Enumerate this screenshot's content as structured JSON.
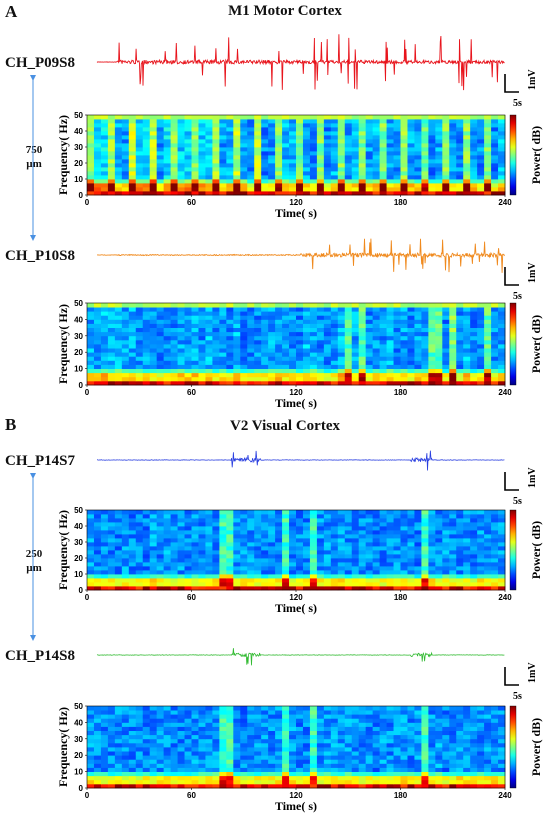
{
  "panels": [
    {
      "letter": "A",
      "title": "M1 Motor Cortex",
      "distance": [
        "750",
        "µm"
      ]
    },
    {
      "letter": "B",
      "title": "V2 Visual Cortex",
      "distance": [
        "250",
        "µm"
      ]
    }
  ],
  "channels": [
    {
      "name": "CH_P09S8",
      "color": "#e8141c"
    },
    {
      "name": "CH_P10S8",
      "color": "#f08a1e"
    },
    {
      "name": "CH_P14S7",
      "color": "#2a3fe0"
    },
    {
      "name": "CH_P14S8",
      "color": "#33bb33"
    }
  ],
  "scale_bar": {
    "voltage": "1mV",
    "time": "5s"
  },
  "chart_data": [
    {
      "type": "heatmap",
      "channel": "CH_P09S8",
      "xlabel": "Time( s)",
      "ylabel": "Frequency( Hz)",
      "colorbar_label": "Power( dB)",
      "x_ticks": [
        "0",
        "60",
        "120",
        "180",
        "240"
      ],
      "y_ticks": [
        "0",
        "10",
        "20",
        "30",
        "40",
        "50"
      ],
      "xlim": [
        0,
        240
      ],
      "ylim": [
        0,
        50
      ],
      "colormap": "jet"
    },
    {
      "type": "heatmap",
      "channel": "CH_P10S8",
      "xlabel": "Time( s)",
      "ylabel": "Frequency( Hz)",
      "colorbar_label": "Power( dB)",
      "x_ticks": [
        "0",
        "60",
        "120",
        "180",
        "240"
      ],
      "y_ticks": [
        "0",
        "10",
        "20",
        "30",
        "40",
        "50"
      ],
      "xlim": [
        0,
        240
      ],
      "ylim": [
        0,
        50
      ],
      "colormap": "jet"
    },
    {
      "type": "heatmap",
      "channel": "CH_P14S7",
      "xlabel": "Time( s)",
      "ylabel": "Frequency( Hz)",
      "colorbar_label": "Power( dB)",
      "x_ticks": [
        "0",
        "60",
        "120",
        "180",
        "240"
      ],
      "y_ticks": [
        "0",
        "10",
        "20",
        "30",
        "40",
        "50"
      ],
      "xlim": [
        0,
        240
      ],
      "ylim": [
        0,
        50
      ],
      "colormap": "jet"
    },
    {
      "type": "heatmap",
      "channel": "CH_P14S8",
      "xlabel": "Time( s)",
      "ylabel": "Frequency( Hz)",
      "colorbar_label": "Power( dB)",
      "x_ticks": [
        "0",
        "60",
        "120",
        "180",
        "240"
      ],
      "y_ticks": [
        "0",
        "10",
        "20",
        "30",
        "40",
        "50"
      ],
      "xlim": [
        0,
        240
      ],
      "ylim": [
        0,
        50
      ],
      "colormap": "jet"
    }
  ]
}
